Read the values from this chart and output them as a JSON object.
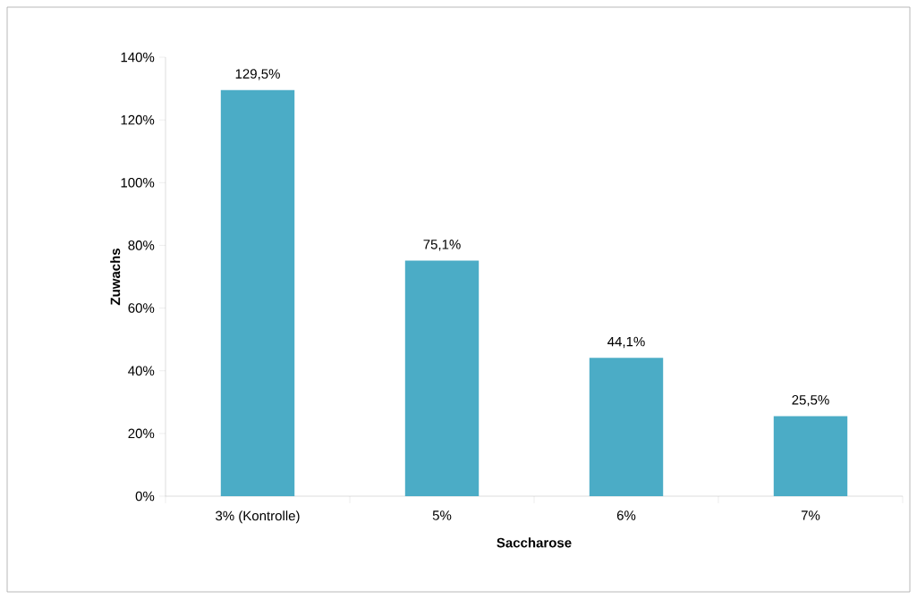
{
  "chart_data": {
    "type": "bar",
    "xlabel": "Saccharose",
    "ylabel": "Zuwachs",
    "categories": [
      "3% (Kontrolle)",
      "5%",
      "6%",
      "7%"
    ],
    "values": [
      129.5,
      75.1,
      44.1,
      25.5
    ],
    "value_labels": [
      "129,5%",
      "75,1%",
      "44,1%",
      "25,5%"
    ],
    "color": "#4bacc6",
    "ylim": [
      0,
      140
    ],
    "yticks": [
      {
        "value": 0,
        "label": "0%"
      },
      {
        "value": 20,
        "label": "20%"
      },
      {
        "value": 40,
        "label": "40%"
      },
      {
        "value": 60,
        "label": "60%"
      },
      {
        "value": 80,
        "label": "80%"
      },
      {
        "value": 100,
        "label": "100%"
      },
      {
        "value": 120,
        "label": "120%"
      },
      {
        "value": 140,
        "label": "140%"
      }
    ]
  }
}
